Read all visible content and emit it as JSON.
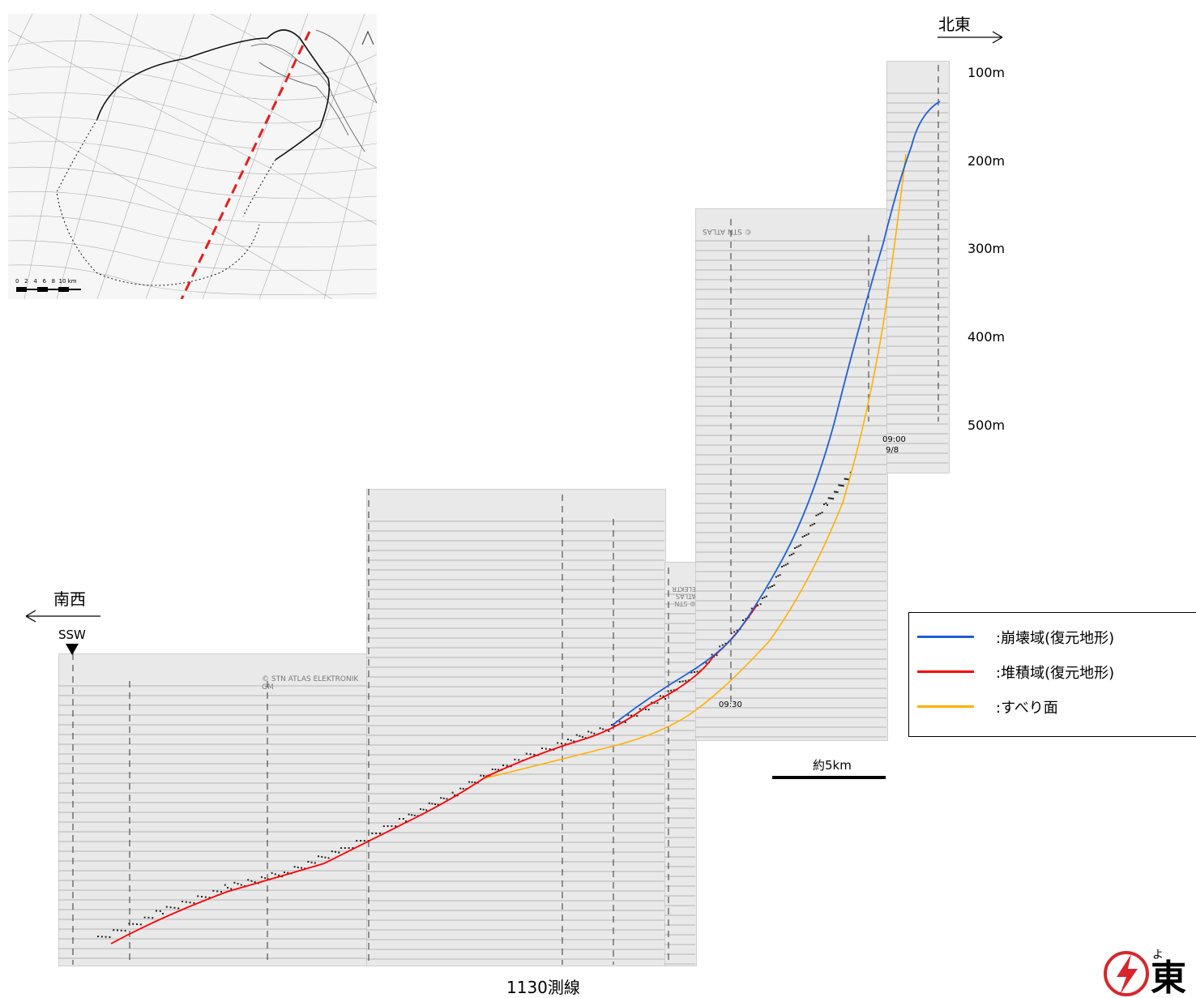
{
  "direction_ne": "北東",
  "direction_sw": "南西",
  "ssw_marker": "SSW",
  "depth_labels": [
    "100m",
    "200m",
    "300m",
    "400m",
    "500m"
  ],
  "scale_bar_label": "約5km",
  "line_label": "1130測線",
  "time_labels": [
    "09:00",
    "9/8",
    "09:30"
  ],
  "header_texts": [
    "© STN ATLAS ELEKTRONIK GM",
    "© STN ATLAS ELEKTR",
    "© STN ATLAS"
  ],
  "map_scale_ticks": [
    "0",
    "2",
    "4",
    "6",
    "8",
    "10 km"
  ],
  "legend": {
    "items": [
      {
        "label": ":崩壊域(復元地形)",
        "color": "#1f5fd6"
      },
      {
        "label": ":堆積域(復元地形)",
        "color": "#ff0000"
      },
      {
        "label": ":すべり面",
        "color": "#ffb000"
      }
    ]
  },
  "logo_char": "東",
  "logo_kana": "よ",
  "colors": {
    "collapse": "#1f5fd6",
    "deposit": "#ff0000",
    "slip": "#ffb000",
    "section_line": "#e02020"
  }
}
